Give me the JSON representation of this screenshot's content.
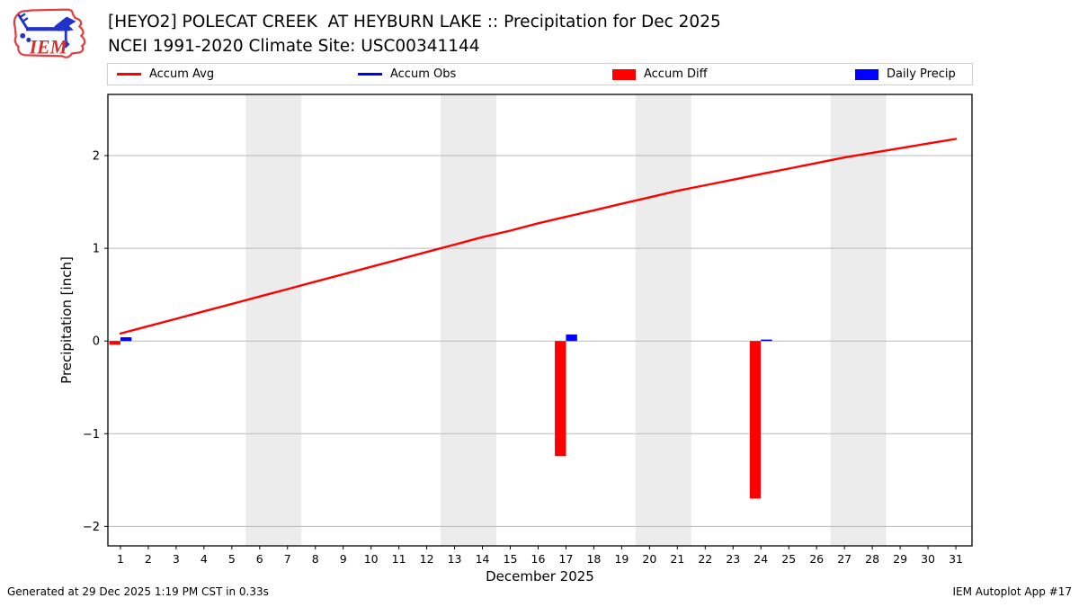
{
  "header": {
    "title": "[HEYO2] POLECAT CREEK  AT HEYBURN LAKE :: Precipitation for Dec 2025",
    "subtitle": "NCEI 1991-2020 Climate Site: USC00341144",
    "logo_text": "IEM"
  },
  "legend": {
    "items": [
      {
        "label": "Accum Avg",
        "swatch": "line",
        "color": "#ff0000"
      },
      {
        "label": "Accum Obs",
        "swatch": "line",
        "color": "#0000ff"
      },
      {
        "label": "Accum Diff",
        "swatch": "rect",
        "color": "#ff0000"
      },
      {
        "label": "Daily Precip",
        "swatch": "rect",
        "color": "#0000ff"
      }
    ]
  },
  "chart_data": {
    "type": "bar",
    "title": "[HEYO2] POLECAT CREEK  AT HEYBURN LAKE :: Precipitation for Dec 2025",
    "xlabel": "December 2025",
    "ylabel": "Precipitation [inch]",
    "xlim": [
      0.55,
      31.58
    ],
    "ylim": [
      -2.21,
      2.66
    ],
    "xticks": [
      1,
      2,
      3,
      4,
      5,
      6,
      7,
      8,
      9,
      10,
      11,
      12,
      13,
      14,
      15,
      16,
      17,
      18,
      19,
      20,
      21,
      22,
      23,
      24,
      25,
      26,
      27,
      28,
      29,
      30,
      31
    ],
    "yticks": [
      -2,
      -1,
      0,
      1,
      2
    ],
    "grid": "horizontal-gray",
    "legend_position": "top-row",
    "band_color": "#ececec",
    "grid_color": "#b9b9b9",
    "weekend_bands": [
      [
        5.5,
        7.5
      ],
      [
        12.5,
        14.5
      ],
      [
        19.5,
        21.5
      ],
      [
        26.5,
        28.5
      ]
    ],
    "series": [
      {
        "name": "Accum Avg",
        "type": "line",
        "color": "#ff0000",
        "x": [
          1,
          2,
          3,
          4,
          5,
          6,
          7,
          8,
          9,
          10,
          11,
          12,
          13,
          14,
          15,
          16,
          17,
          18,
          19,
          20,
          21,
          22,
          23,
          24,
          25,
          26,
          27,
          28,
          29,
          30,
          31
        ],
        "y": [
          0.08,
          0.16,
          0.24,
          0.32,
          0.4,
          0.48,
          0.56,
          0.64,
          0.72,
          0.8,
          0.88,
          0.96,
          1.04,
          1.12,
          1.19,
          1.27,
          1.34,
          1.41,
          1.48,
          1.55,
          1.62,
          1.68,
          1.74,
          1.8,
          1.86,
          1.92,
          1.98,
          2.03,
          2.08,
          2.13,
          2.18
        ]
      },
      {
        "name": "Accum Diff",
        "type": "bar",
        "color": "#ff0000",
        "x_offset": -0.2,
        "bar_width": 0.4,
        "points": [
          {
            "day": 1,
            "value": -0.04
          },
          {
            "day": 17,
            "value": -1.24
          },
          {
            "day": 24,
            "value": -1.7
          }
        ]
      },
      {
        "name": "Daily Precip",
        "type": "bar",
        "color": "#0000ff",
        "x_offset": 0.2,
        "bar_width": 0.4,
        "points": [
          {
            "day": 1,
            "value": 0.04
          },
          {
            "day": 17,
            "value": 0.07
          },
          {
            "day": 24,
            "value": 0.01
          }
        ]
      }
    ]
  },
  "footer": {
    "left": "Generated at 29 Dec 2025 1:19 PM CST in 0.33s",
    "right": "IEM Autoplot App #17"
  }
}
